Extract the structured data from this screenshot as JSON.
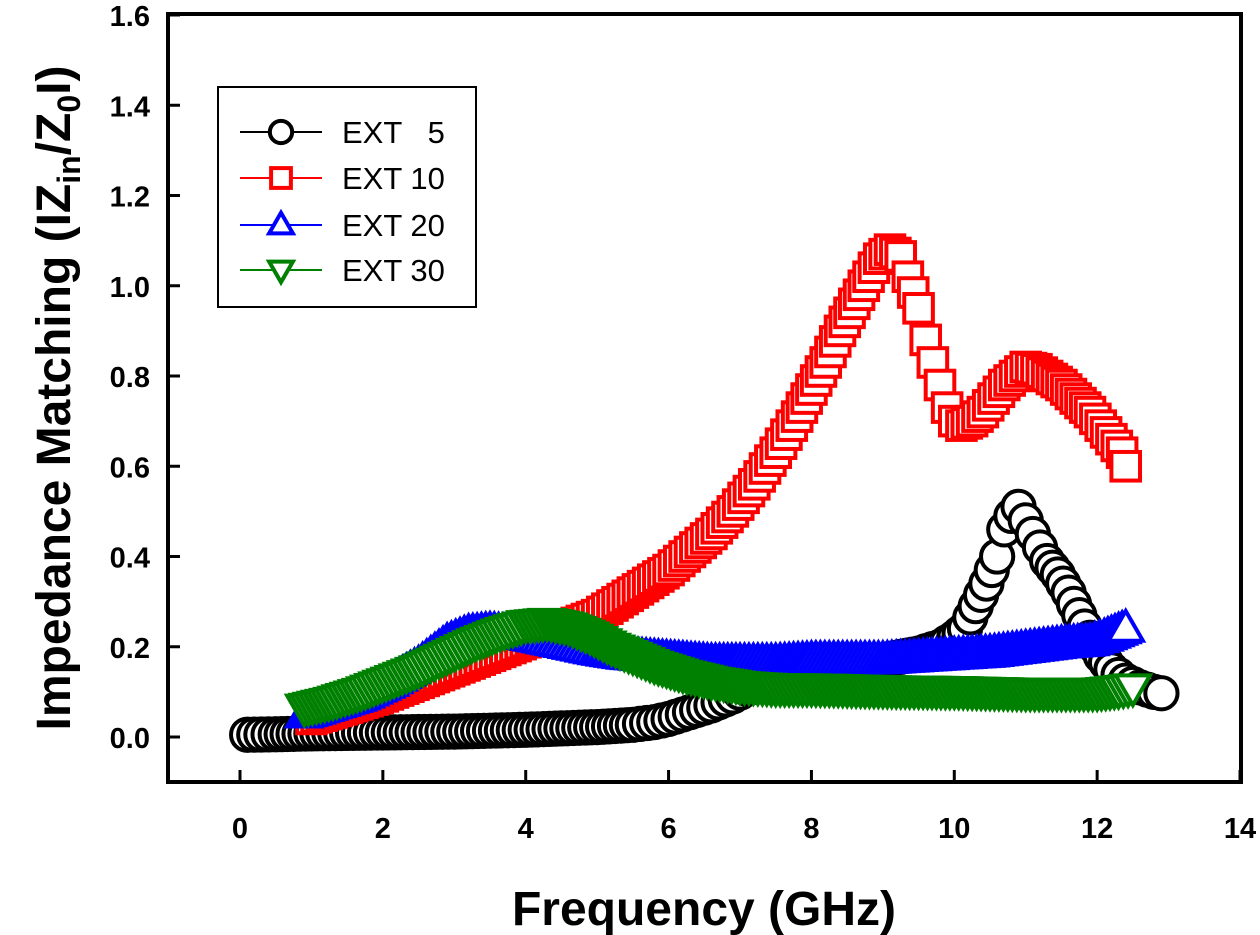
{
  "chart_data": {
    "type": "scatter",
    "title": "",
    "xlabel": "Frequency (GHz)",
    "ylabel": {
      "prefix": "Impedance Matching (IZ",
      "sub1": "in",
      "mid": "/Z",
      "sub2": "0",
      "suffix": "I)"
    },
    "xlim": [
      -1,
      14
    ],
    "ylim": [
      -0.125,
      1.6
    ],
    "xticks": [
      0,
      2,
      4,
      6,
      8,
      10,
      12,
      14
    ],
    "xtick_labels": [
      "0",
      "2",
      "4",
      "6",
      "8",
      "10",
      "12",
      "14"
    ],
    "yticks": [
      0.0,
      0.2,
      0.4,
      0.6,
      0.8,
      1.0,
      1.2,
      1.4,
      1.6
    ],
    "ytick_labels": [
      "0.0",
      "0.2",
      "0.4",
      "0.6",
      "0.8",
      "1.0",
      "1.2",
      "1.4",
      "1.6"
    ],
    "grid": false,
    "legend_position": "top-left",
    "series": [
      {
        "name": "EXT   5",
        "legend_label": "EXT   5",
        "marker": "circle",
        "color": "#000000",
        "x": [
          0.1,
          0.5,
          1.0,
          1.5,
          2.0,
          2.5,
          3.0,
          3.5,
          4.0,
          4.5,
          5.0,
          5.5,
          5.8,
          6.0,
          6.3,
          6.6,
          6.9,
          7.2,
          7.6,
          8.0,
          8.5,
          9.0,
          9.5,
          9.8,
          10.0,
          10.15,
          10.3,
          10.45,
          10.6,
          10.7,
          10.8,
          10.9,
          11.0,
          11.1,
          11.2,
          11.3,
          11.45,
          11.6,
          11.75,
          11.9,
          12.05,
          12.2,
          12.4,
          12.6,
          12.8,
          12.9
        ],
        "y": [
          0.005,
          0.006,
          0.008,
          0.009,
          0.01,
          0.011,
          0.012,
          0.014,
          0.016,
          0.019,
          0.022,
          0.027,
          0.033,
          0.04,
          0.055,
          0.07,
          0.09,
          0.115,
          0.135,
          0.15,
          0.16,
          0.17,
          0.185,
          0.2,
          0.22,
          0.24,
          0.29,
          0.34,
          0.4,
          0.46,
          0.49,
          0.51,
          0.48,
          0.45,
          0.42,
          0.39,
          0.36,
          0.32,
          0.27,
          0.22,
          0.18,
          0.15,
          0.125,
          0.11,
          0.1,
          0.097
        ]
      },
      {
        "name": "EXT 10",
        "legend_label": "EXT 10",
        "marker": "square",
        "color": "#ff0000",
        "x": [
          1.0,
          1.5,
          2.0,
          2.5,
          3.0,
          3.5,
          4.0,
          4.5,
          5.0,
          5.5,
          6.0,
          6.3,
          6.6,
          6.9,
          7.2,
          7.5,
          7.8,
          8.0,
          8.2,
          8.4,
          8.6,
          8.8,
          8.95,
          9.1,
          9.25,
          9.35,
          9.5,
          9.6,
          9.7,
          9.8,
          9.9,
          10.0,
          10.1,
          10.25,
          10.4,
          10.55,
          10.7,
          10.85,
          11.0,
          11.15,
          11.3,
          11.5,
          11.7,
          11.9,
          12.05,
          12.2,
          12.35,
          12.4
        ],
        "y": [
          0.04,
          0.065,
          0.09,
          0.12,
          0.15,
          0.18,
          0.21,
          0.24,
          0.27,
          0.32,
          0.37,
          0.41,
          0.45,
          0.5,
          0.56,
          0.63,
          0.71,
          0.77,
          0.83,
          0.9,
          0.96,
          1.02,
          1.06,
          1.08,
          1.065,
          1.02,
          0.95,
          0.88,
          0.83,
          0.78,
          0.73,
          0.7,
          0.69,
          0.7,
          0.72,
          0.75,
          0.78,
          0.8,
          0.82,
          0.815,
          0.8,
          0.78,
          0.75,
          0.72,
          0.69,
          0.66,
          0.63,
          0.6
        ]
      },
      {
        "name": "EXT 20",
        "legend_label": "EXT 20",
        "marker": "triangle-up",
        "color": "#0000ff",
        "x": [
          0.9,
          1.3,
          1.7,
          2.1,
          2.5,
          2.9,
          3.2,
          3.5,
          3.8,
          4.1,
          4.4,
          4.7,
          5.0,
          5.4,
          5.8,
          6.2,
          6.6,
          7.0,
          7.5,
          8.0,
          8.5,
          9.0,
          9.5,
          10.0,
          10.5,
          11.0,
          11.5,
          11.9,
          12.1,
          12.25,
          12.4
        ],
        "y": [
          0.05,
          0.07,
          0.09,
          0.12,
          0.16,
          0.21,
          0.23,
          0.235,
          0.23,
          0.22,
          0.21,
          0.2,
          0.19,
          0.18,
          0.175,
          0.17,
          0.165,
          0.165,
          0.165,
          0.17,
          0.17,
          0.17,
          0.175,
          0.18,
          0.185,
          0.195,
          0.205,
          0.21,
          0.22,
          0.23,
          0.24
        ]
      },
      {
        "name": "EXT 30",
        "legend_label": "EXT 30",
        "marker": "triangle-down",
        "color": "#008000",
        "x": [
          0.9,
          1.3,
          1.7,
          2.1,
          2.5,
          2.9,
          3.3,
          3.7,
          4.0,
          4.3,
          4.6,
          4.9,
          5.2,
          5.5,
          5.8,
          6.2,
          6.6,
          7.0,
          7.5,
          8.0,
          8.5,
          9.0,
          9.5,
          10.0,
          10.5,
          11.0,
          11.5,
          12.0,
          12.3,
          12.5
        ],
        "y": [
          0.065,
          0.08,
          0.1,
          0.125,
          0.15,
          0.18,
          0.21,
          0.235,
          0.25,
          0.255,
          0.245,
          0.225,
          0.2,
          0.18,
          0.16,
          0.14,
          0.125,
          0.115,
          0.11,
          0.11,
          0.108,
          0.106,
          0.105,
          0.104,
          0.102,
          0.1,
          0.1,
          0.1,
          0.105,
          0.11
        ]
      }
    ]
  }
}
